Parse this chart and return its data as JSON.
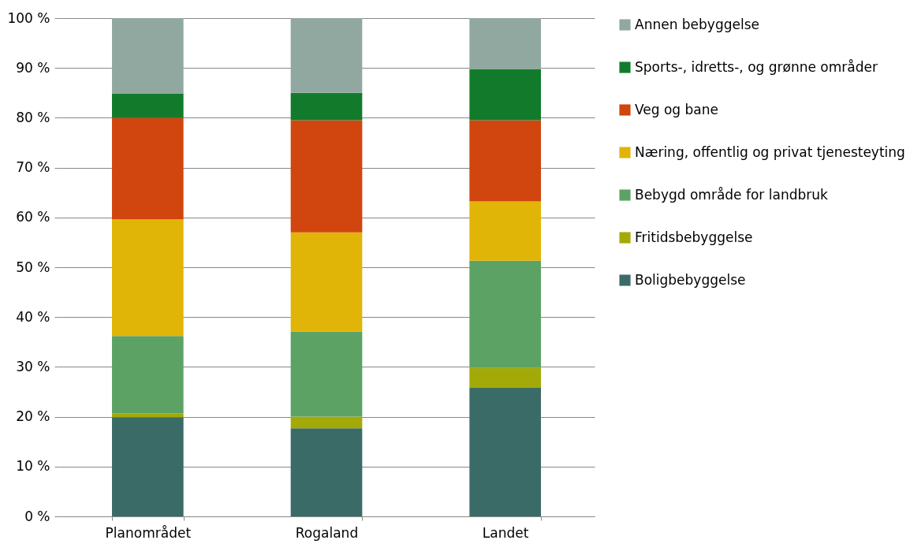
{
  "chart_data": {
    "type": "bar",
    "stacked": true,
    "categories": [
      "Planområdet",
      "Rogaland",
      "Landet"
    ],
    "series": [
      {
        "name": "Boligbebyggelse",
        "color": "#3b6b66",
        "values": [
          19.9,
          17.7,
          25.8
        ]
      },
      {
        "name": "Fritidsbebyggelse",
        "color": "#a3aa08",
        "values": [
          0.8,
          2.3,
          4.0
        ]
      },
      {
        "name": "Bebygd område for landbruk",
        "color": "#5ca264",
        "values": [
          15.5,
          17.1,
          21.5
        ]
      },
      {
        "name": "Næring, offentlig og privat tjenesteyting",
        "color": "#e1b408",
        "values": [
          23.4,
          19.9,
          11.9
        ]
      },
      {
        "name": "Veg og bane",
        "color": "#d0460e",
        "values": [
          20.4,
          22.5,
          16.3
        ]
      },
      {
        "name": "Sports-, idretts-, og grønne områder",
        "color": "#127b2b",
        "values": [
          4.9,
          5.5,
          10.2
        ]
      },
      {
        "name": "Annen bebyggelse",
        "color": "#91a8a0",
        "values": [
          15.1,
          15.0,
          10.3
        ]
      }
    ],
    "ylim": [
      0,
      100
    ],
    "yticks": [
      {
        "value": 0,
        "label": "0 %"
      },
      {
        "value": 10,
        "label": "10 %"
      },
      {
        "value": 20,
        "label": "20 %"
      },
      {
        "value": 30,
        "label": "30 %"
      },
      {
        "value": 40,
        "label": "40 %"
      },
      {
        "value": 50,
        "label": "50 %"
      },
      {
        "value": 60,
        "label": "60 %"
      },
      {
        "value": 70,
        "label": "70 %"
      },
      {
        "value": 80,
        "label": "80 %"
      },
      {
        "value": 90,
        "label": "90 %"
      },
      {
        "value": 100,
        "label": "100 %"
      }
    ],
    "grid": "y",
    "legend": "right"
  }
}
